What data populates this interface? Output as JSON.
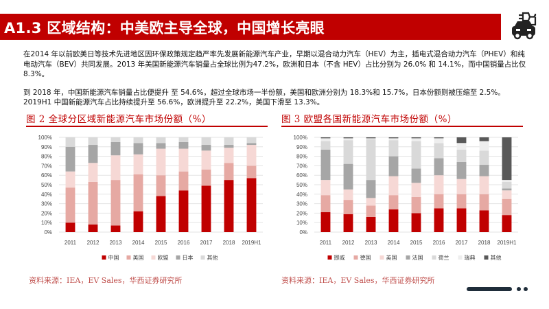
{
  "header": {
    "title": "A1.3  区域结构：中美欧主导全球，中国增长亮眼",
    "logo_icon": "car-charging-plug-icon",
    "accent_color": "#c00000"
  },
  "body": {
    "paragraph1": "在2014 年以前欧美日等技术先进地区因环保政策规定趋严率先发展新能源汽车产业，早期以混合动力汽车（HEV）为主，插电式混合动力汽车（PHEV）和纯电动汽车（BEV）共同发展。2013 年美国新能源汽车销量占全球比例为47.2%，欧洲和日本（不含 HEV）占比分别为 26.0% 和 14.1%，而中国销量占比仅 8.3%。",
    "paragraph2": "到 2018 年，中国新能源汽车销量占比便提升 至 54.6%，超过全球市场一半份额，美国和欧洲分别为 18.3%和 15.7%，日本份额则被压缩至 2.5%。2019H1 中国新能源汽车占比持续提升至 56.6%，欧洲提升至 22.2%，美国下滑至 13.3%。"
  },
  "figures": [
    {
      "title": "图 2  全球分区域新能源汽车市场份额（%）",
      "source": "资料来源：IEA，EV Sales，华西证券研究所",
      "chart_data": {
        "type": "bar",
        "stacked": true,
        "categories": [
          "2011",
          "2012",
          "2013",
          "2014",
          "2015",
          "2016",
          "2017",
          "2018",
          "2019H1"
        ],
        "yticks": [
          "0%",
          "10%",
          "20%",
          "30%",
          "40%",
          "50%",
          "60%",
          "70%",
          "80%",
          "90%",
          "100%"
        ],
        "ylim": [
          0,
          100
        ],
        "series": [
          {
            "name": "中国",
            "color": "#c00000",
            "values": [
              10,
              8,
              7,
              22,
              38,
              44,
              49,
              55,
              57
            ]
          },
          {
            "name": "美国",
            "color": "#e6a9a3",
            "values": [
              37,
              45,
              48,
              39,
              22,
              20,
              17,
              18,
              13
            ]
          },
          {
            "name": "欧盟",
            "color": "#f6d8d5",
            "values": [
              17,
              20,
              26,
              21,
              28,
              24,
              20,
              16,
              22
            ]
          },
          {
            "name": "日本",
            "color": "#a6a6a6",
            "values": [
              26,
              19,
              14,
              12,
              6,
              7,
              6,
              3,
              2
            ]
          },
          {
            "name": "其他",
            "color": "#d9d9d9",
            "values": [
              10,
              8,
              5,
              6,
              6,
              5,
              8,
              8,
              6
            ]
          }
        ]
      }
    },
    {
      "title": "图 3  欧盟各国新能源汽车市场份额（%）",
      "source": "资料来源：IEA，EV Sales，华西证券研究所",
      "chart_data": {
        "type": "bar",
        "stacked": true,
        "categories": [
          "2011",
          "2012",
          "2013",
          "2014",
          "2015",
          "2016",
          "2017",
          "2018",
          "2019H1"
        ],
        "yticks": [
          "0%",
          "10%",
          "20%",
          "30%",
          "40%",
          "50%",
          "60%",
          "70%",
          "80%",
          "90%",
          "100%"
        ],
        "ylim": [
          0,
          100
        ],
        "series": [
          {
            "name": "挪威",
            "color": "#c00000",
            "values": [
              21,
              19,
              16,
              24,
              20,
              25,
              25,
              23,
              18
            ]
          },
          {
            "name": "德国",
            "color": "#e6a9a3",
            "values": [
              18,
              15,
              12,
              15,
              17,
              15,
              15,
              17,
              17
            ]
          },
          {
            "name": "英国",
            "color": "#f6d8d5",
            "values": [
              16,
              11,
              8,
              20,
              15,
              20,
              16,
              19,
              9
            ]
          },
          {
            "name": "法国",
            "color": "#a6a6a6",
            "values": [
              32,
              27,
              19,
              21,
              15,
              18,
              18,
              12,
              2
            ]
          },
          {
            "name": "荷兰",
            "color": "#d9d9d9",
            "values": [
              9,
              25,
              43,
              17,
              29,
              16,
              13,
              15,
              7
            ]
          },
          {
            "name": "瑞典",
            "color": "#eeeeee",
            "values": [
              3,
              2,
              1,
              2,
              3,
              5,
              7,
              10,
              2
            ]
          },
          {
            "name": "其他",
            "color": "#595959",
            "values": [
              1,
              1,
              1,
              1,
              1,
              1,
              6,
              4,
              45
            ]
          }
        ]
      }
    }
  ]
}
